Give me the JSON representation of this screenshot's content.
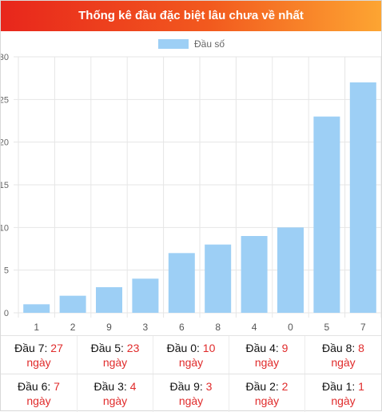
{
  "header": {
    "title": "Thống kê đầu đặc biệt lâu chưa về nhất"
  },
  "colors": {
    "bar": "#9dcff5",
    "grid": "#e6e6e6",
    "accent": "#e02b2b"
  },
  "chart_data": {
    "type": "bar",
    "categories": [
      "1",
      "2",
      "9",
      "3",
      "6",
      "8",
      "4",
      "0",
      "5",
      "7"
    ],
    "series": [
      {
        "name": "Đầu số",
        "values": [
          1,
          2,
          3,
          4,
          7,
          8,
          9,
          10,
          23,
          27
        ]
      }
    ],
    "ylim": [
      0,
      30
    ],
    "yticks": [
      0,
      5,
      10,
      15,
      20,
      25,
      30
    ],
    "grid": true,
    "legend": "top-center"
  },
  "stats": {
    "unit": "ngày",
    "rows": [
      [
        {
          "label": "Đầu 7: ",
          "value": "27"
        },
        {
          "label": "Đầu 5: ",
          "value": "23"
        },
        {
          "label": "Đầu 0: ",
          "value": "10"
        },
        {
          "label": "Đầu 4: ",
          "value": "9"
        },
        {
          "label": "Đầu 8: ",
          "value": "8"
        }
      ],
      [
        {
          "label": "Đầu 6: ",
          "value": "7"
        },
        {
          "label": "Đầu 3: ",
          "value": "4"
        },
        {
          "label": "Đầu 9: ",
          "value": "3"
        },
        {
          "label": "Đầu 2: ",
          "value": "2"
        },
        {
          "label": "Đầu 1: ",
          "value": "1"
        }
      ]
    ]
  }
}
